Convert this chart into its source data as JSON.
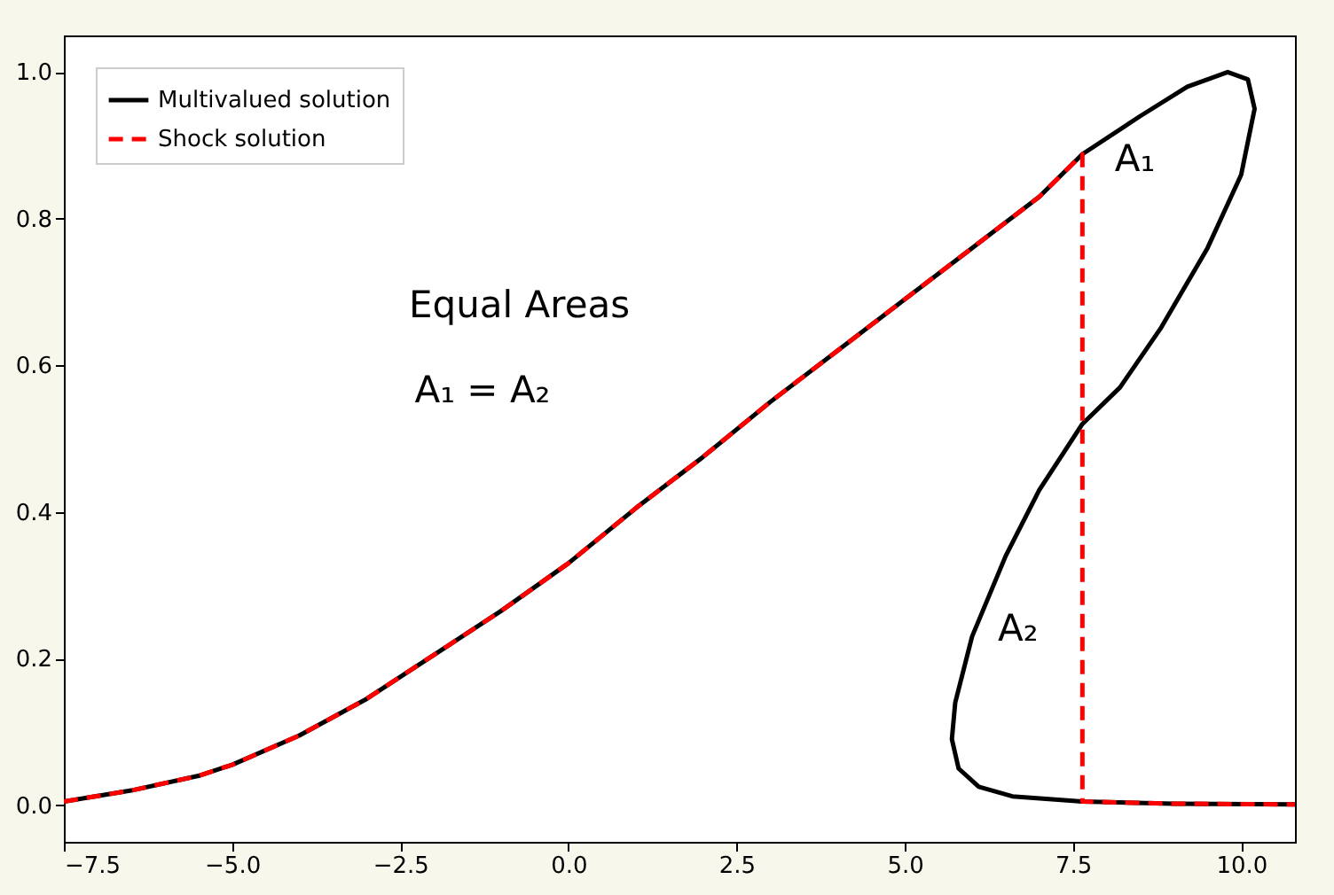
{
  "chart_data": {
    "type": "line",
    "xlim": [
      -7.5,
      10.8
    ],
    "ylim": [
      -0.05,
      1.05
    ],
    "xticks": [
      {
        "value": -7.5,
        "label": "−7.5"
      },
      {
        "value": -5,
        "label": "−5.0"
      },
      {
        "value": -2.5,
        "label": "−2.5"
      },
      {
        "value": 0,
        "label": "0.0"
      },
      {
        "value": 2.5,
        "label": "2.5"
      },
      {
        "value": 5,
        "label": "5.0"
      },
      {
        "value": 7.5,
        "label": "7.5"
      },
      {
        "value": 10,
        "label": "10.0"
      }
    ],
    "yticks": [
      {
        "value": 0,
        "label": "0.0"
      },
      {
        "value": 0.2,
        "label": "0.2"
      },
      {
        "value": 0.4,
        "label": "0.4"
      },
      {
        "value": 0.6,
        "label": "0.6"
      },
      {
        "value": 0.8,
        "label": "0.8"
      },
      {
        "value": 1,
        "label": "1.0"
      }
    ],
    "grid": false,
    "legend": "top left",
    "series": [
      {
        "name": "Multivalued solution",
        "color": "#000000",
        "line_style": "solid",
        "x": [
          -7.5,
          -6.5,
          -5.5,
          -5,
          -4,
          -3,
          -2,
          -1,
          0,
          1,
          2,
          3,
          4,
          5,
          6,
          7,
          7.64,
          8.5,
          9.2,
          9.8,
          10.1,
          10.2,
          10.0,
          9.5,
          8.8,
          8.2,
          7.64,
          7,
          6.5,
          6.0,
          5.75,
          5.7,
          5.8,
          6.1,
          6.6,
          7.64,
          9,
          10.8
        ],
        "values": [
          0.005,
          0.02,
          0.04,
          0.055,
          0.095,
          0.145,
          0.205,
          0.265,
          0.33,
          0.405,
          0.475,
          0.55,
          0.62,
          0.69,
          0.76,
          0.83,
          0.888,
          0.94,
          0.98,
          1.0,
          0.99,
          0.95,
          0.86,
          0.76,
          0.65,
          0.57,
          0.52,
          0.43,
          0.34,
          0.23,
          0.14,
          0.09,
          0.05,
          0.025,
          0.012,
          0.005,
          0.002,
          0.001
        ]
      },
      {
        "name": "Shock solution",
        "color": "#ff0000",
        "line_style": "dashed",
        "x": [
          -7.5,
          -6.5,
          -5.5,
          -5,
          -4,
          -3,
          -2,
          -1,
          0,
          1,
          2,
          3,
          4,
          5,
          6,
          7,
          7.64,
          7.64,
          9,
          10.8
        ],
        "values": [
          0.005,
          0.02,
          0.04,
          0.055,
          0.095,
          0.145,
          0.205,
          0.265,
          0.33,
          0.405,
          0.475,
          0.55,
          0.62,
          0.69,
          0.76,
          0.83,
          0.888,
          0.005,
          0.002,
          0.001
        ]
      }
    ],
    "annotations": [
      "A₁",
      "A₂",
      "Equal Areas",
      "A₁ = A₂"
    ]
  }
}
